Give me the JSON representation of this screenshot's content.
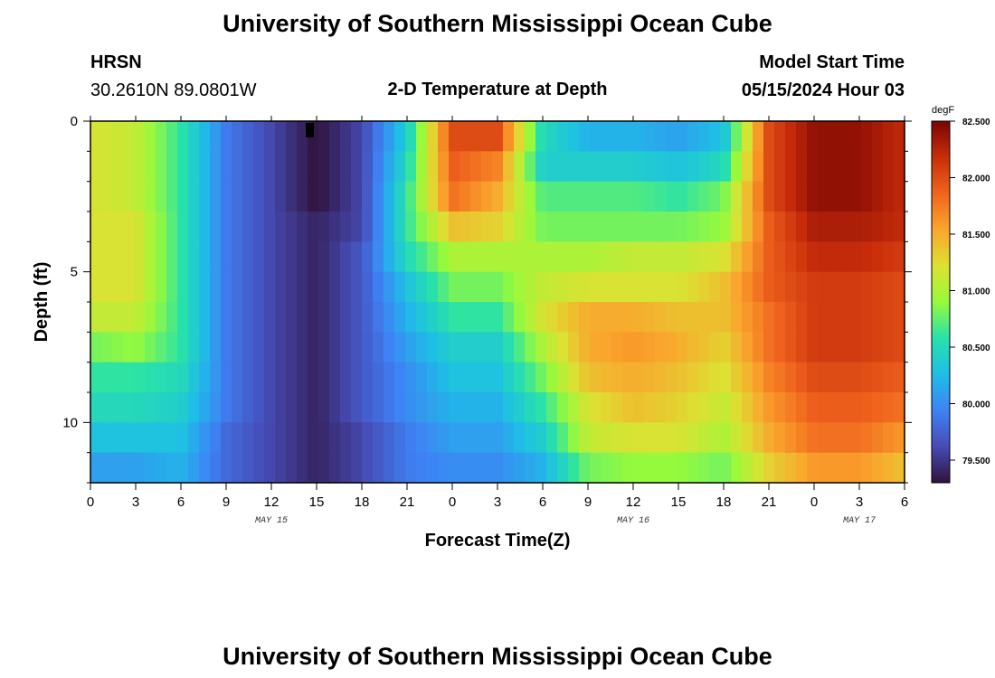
{
  "header": {
    "title": "University of Southern Mississippi Ocean Cube",
    "station": "HRSN",
    "location": "30.2610N  89.0801W",
    "subtitle": "2-D Temperature at Depth",
    "model_label": "Model Start Time",
    "model_time": "05/15/2024 Hour 03"
  },
  "footer": {
    "title": "University of Southern Mississippi Ocean Cube"
  },
  "chart_data": {
    "type": "heatmap",
    "title": "2-D Temperature at Depth",
    "xlabel": "Forecast Time(Z)",
    "ylabel": "Depth (ft)",
    "colorbar_unit": "degF",
    "clim": [
      79.3,
      82.5
    ],
    "colorbar_ticks": [
      "79.500",
      "80.000",
      "80.500",
      "81.000",
      "81.500",
      "82.000",
      "82.500"
    ],
    "colorbar_tick_values": [
      79.5,
      80.0,
      80.5,
      81.0,
      81.5,
      82.0,
      82.5
    ],
    "x_tick_labels": [
      "0",
      "3",
      "6",
      "9",
      "12",
      "15",
      "18",
      "21",
      "0",
      "3",
      "6",
      "9",
      "12",
      "15",
      "18",
      "21",
      "0",
      "3",
      "6"
    ],
    "x_tick_hours": [
      0,
      3,
      6,
      9,
      12,
      15,
      18,
      21,
      24,
      27,
      30,
      33,
      36,
      39,
      42,
      45,
      48,
      51,
      54
    ],
    "xlim_hours": [
      0,
      54
    ],
    "day_labels": [
      {
        "text": "MAY 15",
        "hour": 12
      },
      {
        "text": "MAY 16",
        "hour": 36
      },
      {
        "text": "MAY 17",
        "hour": 51
      }
    ],
    "y_tick_labels": [
      "0",
      "5",
      "10"
    ],
    "y_tick_values": [
      0,
      5,
      10
    ],
    "ylim": [
      0,
      12
    ],
    "depths_ft": [
      0.5,
      1.5,
      2.5,
      3.5,
      4.5,
      5.5,
      6.5,
      7.5,
      8.5,
      9.5,
      10.5,
      11.5
    ],
    "hours": [
      0,
      3,
      6,
      9,
      12,
      15,
      18,
      21,
      24,
      27,
      30,
      33,
      36,
      39,
      42,
      45,
      48,
      51,
      54
    ],
    "temperature_degF": [
      [
        81.2,
        81.1,
        80.6,
        79.9,
        79.6,
        79.3,
        79.6,
        80.4,
        82.0,
        82.0,
        80.5,
        80.2,
        80.2,
        80.1,
        80.3,
        82.0,
        82.4,
        82.4,
        82.2
      ],
      [
        81.2,
        81.1,
        80.6,
        79.9,
        79.6,
        79.3,
        79.6,
        80.5,
        81.9,
        81.7,
        80.4,
        80.4,
        80.4,
        80.3,
        80.5,
        82.0,
        82.4,
        82.4,
        82.2
      ],
      [
        81.2,
        81.1,
        80.6,
        79.9,
        79.6,
        79.3,
        79.6,
        80.6,
        81.8,
        81.5,
        80.7,
        80.7,
        80.7,
        80.6,
        80.8,
        82.0,
        82.4,
        82.4,
        82.2
      ],
      [
        81.2,
        81.2,
        80.6,
        79.9,
        79.6,
        79.4,
        79.6,
        80.6,
        81.4,
        81.3,
        80.8,
        80.8,
        80.8,
        80.8,
        80.9,
        81.9,
        82.3,
        82.3,
        82.2
      ],
      [
        81.2,
        81.2,
        80.6,
        79.9,
        79.6,
        79.4,
        79.7,
        80.5,
        81.0,
        81.0,
        81.0,
        81.0,
        81.1,
        81.1,
        81.2,
        81.9,
        82.2,
        82.2,
        82.1
      ],
      [
        81.2,
        81.2,
        80.6,
        79.9,
        79.6,
        79.4,
        79.7,
        80.3,
        80.8,
        80.8,
        81.1,
        81.2,
        81.2,
        81.2,
        81.4,
        81.9,
        82.1,
        82.1,
        82.0
      ],
      [
        81.1,
        81.1,
        80.6,
        79.9,
        79.6,
        79.4,
        79.7,
        80.2,
        80.6,
        80.6,
        81.2,
        81.5,
        81.5,
        81.4,
        81.4,
        81.8,
        82.1,
        82.1,
        82.0
      ],
      [
        80.8,
        80.9,
        80.6,
        79.9,
        79.6,
        79.4,
        79.7,
        80.1,
        80.4,
        80.4,
        81.0,
        81.5,
        81.6,
        81.5,
        81.3,
        81.8,
        82.1,
        82.1,
        82.0
      ],
      [
        80.6,
        80.6,
        80.5,
        79.9,
        79.6,
        79.4,
        79.7,
        80.0,
        80.3,
        80.3,
        80.8,
        81.4,
        81.5,
        81.4,
        81.2,
        81.7,
        82.0,
        82.0,
        81.9
      ],
      [
        80.5,
        80.5,
        80.4,
        79.9,
        79.6,
        79.4,
        79.7,
        80.0,
        80.2,
        80.2,
        80.6,
        81.2,
        81.4,
        81.3,
        81.1,
        81.6,
        81.9,
        81.9,
        81.8
      ],
      [
        80.3,
        80.3,
        80.3,
        79.8,
        79.6,
        79.4,
        79.6,
        79.9,
        80.1,
        80.1,
        80.4,
        81.1,
        81.2,
        81.2,
        81.0,
        81.5,
        81.8,
        81.8,
        81.6
      ],
      [
        80.1,
        80.1,
        80.2,
        79.8,
        79.6,
        79.4,
        79.6,
        79.9,
        80.0,
        80.0,
        80.2,
        80.8,
        80.9,
        80.9,
        80.8,
        81.3,
        81.6,
        81.6,
        81.4
      ]
    ]
  }
}
